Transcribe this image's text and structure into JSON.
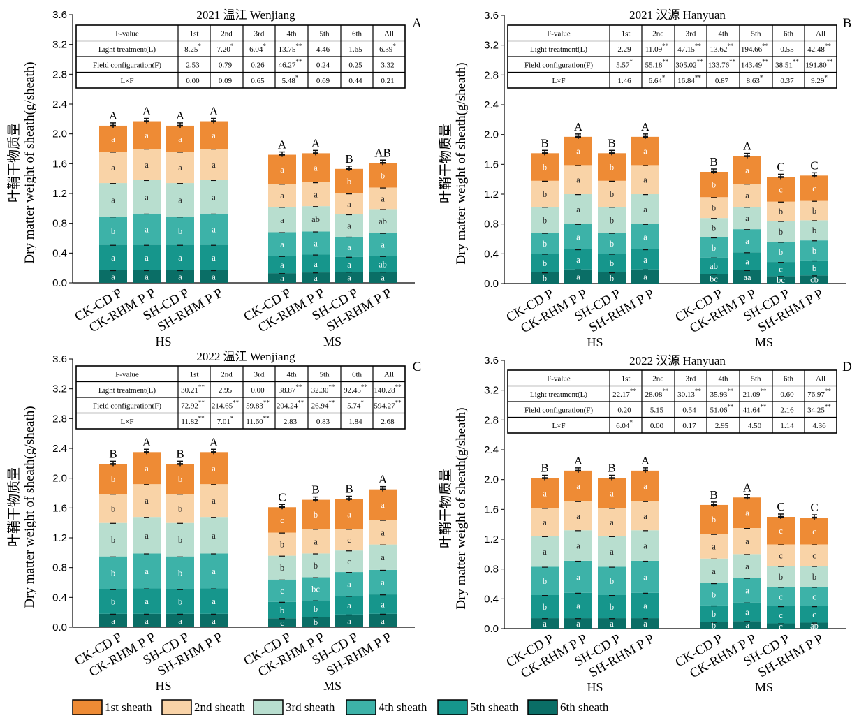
{
  "colors": {
    "s1": "#EE8B35",
    "s2": "#F9D3A7",
    "s3": "#B8DECF",
    "s4": "#3DB2A8",
    "s5": "#16968C",
    "s6": "#0A6E66"
  },
  "legend": [
    "1st sheath",
    "2nd sheath",
    "3rd sheath",
    "4th sheath",
    "5th sheath",
    "6th sheath"
  ],
  "chart_data": [
    {
      "type": "bar",
      "stacked": true,
      "title": "2021 温江 Wenjiang",
      "panel_label": "A",
      "ylabel_cn": "叶鞘干物质量",
      "ylabel": "Dry matter weight of sheath(g/sheath)",
      "ylim": [
        0,
        3.6
      ],
      "yticks": [
        "0.0",
        "0.4",
        "0.8",
        "1.2",
        "1.6",
        "2.0",
        "2.4",
        "2.8",
        "3.2",
        "3.6"
      ],
      "categories": [
        "CK-CD P",
        "CK-RHM P P",
        "SH-CD P",
        "SH-RHM P P",
        "CK-CD P",
        "CK-RHM P P",
        "SH-CD P",
        "SH-RHM P P"
      ],
      "groups": [
        "HS",
        "MS"
      ],
      "series": [
        {
          "name": "6th sheath",
          "values": [
            0.17,
            0.17,
            0.17,
            0.17,
            0.13,
            0.14,
            0.15,
            0.15
          ]
        },
        {
          "name": "5th sheath",
          "values": [
            0.34,
            0.34,
            0.34,
            0.34,
            0.23,
            0.24,
            0.2,
            0.21
          ]
        },
        {
          "name": "4th sheath",
          "values": [
            0.38,
            0.42,
            0.38,
            0.42,
            0.32,
            0.31,
            0.27,
            0.31
          ]
        },
        {
          "name": "3rd sheath",
          "values": [
            0.45,
            0.45,
            0.45,
            0.45,
            0.34,
            0.34,
            0.3,
            0.32
          ]
        },
        {
          "name": "2nd sheath",
          "values": [
            0.42,
            0.42,
            0.42,
            0.42,
            0.31,
            0.32,
            0.28,
            0.29
          ]
        },
        {
          "name": "1st sheath",
          "values": [
            0.35,
            0.37,
            0.35,
            0.37,
            0.39,
            0.39,
            0.33,
            0.33
          ]
        }
      ],
      "segment_letters": [
        [
          "a",
          "a",
          "a",
          "a",
          "a",
          "a",
          "a",
          "a"
        ],
        [
          "a",
          "a",
          "a",
          "a",
          "a",
          "a",
          "a",
          "ab"
        ],
        [
          "b",
          "a",
          "b",
          "a",
          "a",
          "a",
          "a",
          "a"
        ],
        [
          "a",
          "a",
          "a",
          "a",
          "a",
          "ab",
          "a",
          "ab"
        ],
        [
          "a",
          "a",
          "a",
          "a",
          "a",
          "a",
          "a",
          "a"
        ],
        [
          "a",
          "a",
          "a",
          "a",
          "a",
          "a",
          "b",
          "b"
        ]
      ],
      "total_letters": [
        "A",
        "A",
        "A",
        "A",
        "A",
        "A",
        "B",
        "AB"
      ],
      "ftable": {
        "header": [
          "F-value",
          "1st",
          "2nd",
          "3rd",
          "4th",
          "5th",
          "6th",
          "All"
        ],
        "rows": [
          {
            "label": "Light treatment(L)",
            "cells": [
              "8.25",
              "7.20",
              "6.04",
              "13.75",
              "4.46",
              "1.65",
              "6.39"
            ],
            "sig": [
              "*",
              "*",
              "*",
              "**",
              "",
              "",
              "*"
            ]
          },
          {
            "label": "Field configuration(F)",
            "cells": [
              "2.53",
              "0.79",
              "0.26",
              "46.27",
              "0.24",
              "0.25",
              "3.32"
            ],
            "sig": [
              "",
              "",
              "",
              "**",
              "",
              "",
              ""
            ]
          },
          {
            "label": "L×F",
            "cells": [
              "0.00",
              "0.09",
              "0.65",
              "5.48",
              "0.69",
              "0.44",
              "0.21"
            ],
            "sig": [
              "",
              "",
              "",
              "*",
              "",
              "",
              ""
            ]
          }
        ]
      }
    },
    {
      "type": "bar",
      "stacked": true,
      "title": "2021 汉源 Hanyuan",
      "panel_label": "B",
      "ylabel_cn": "叶鞘干物质量",
      "ylabel": "Dry matter weight of sheath(g/sheath)",
      "ylim": [
        0,
        3.6
      ],
      "yticks": [
        "0.0",
        "0.4",
        "0.8",
        "1.2",
        "1.6",
        "2.0",
        "2.4",
        "2.8",
        "3.2",
        "3.6"
      ],
      "categories": [
        "CK-CD P",
        "CK-RHM P P",
        "SH-CD P",
        "SH-RHM P P",
        "CK-CD P",
        "CK-RHM P P",
        "SH-CD P",
        "SH-RHM P P"
      ],
      "groups": [
        "HS",
        "MS"
      ],
      "series": [
        {
          "name": "6th sheath",
          "values": [
            0.15,
            0.19,
            0.15,
            0.19,
            0.13,
            0.18,
            0.1,
            0.11
          ]
        },
        {
          "name": "5th sheath",
          "values": [
            0.25,
            0.27,
            0.25,
            0.27,
            0.22,
            0.24,
            0.19,
            0.2
          ]
        },
        {
          "name": "4th sheath",
          "values": [
            0.28,
            0.34,
            0.28,
            0.34,
            0.27,
            0.31,
            0.27,
            0.27
          ]
        },
        {
          "name": "3rd sheath",
          "values": [
            0.35,
            0.4,
            0.35,
            0.4,
            0.26,
            0.3,
            0.28,
            0.27
          ]
        },
        {
          "name": "2nd sheath",
          "values": [
            0.35,
            0.39,
            0.35,
            0.39,
            0.28,
            0.31,
            0.26,
            0.26
          ]
        },
        {
          "name": "1st sheath",
          "values": [
            0.37,
            0.38,
            0.37,
            0.38,
            0.34,
            0.37,
            0.33,
            0.34
          ]
        }
      ],
      "segment_letters": [
        [
          "b",
          "a",
          "b",
          "a",
          "bc",
          "aa",
          "bc",
          "cb"
        ],
        [
          "b",
          "a",
          "b",
          "a",
          "ab",
          "a",
          "c",
          "b"
        ],
        [
          "b",
          "a",
          "b",
          "a",
          "b",
          "a",
          "b",
          "b"
        ],
        [
          "b",
          "a",
          "b",
          "a",
          "b",
          "a",
          "b",
          "b"
        ],
        [
          "b",
          "a",
          "b",
          "a",
          "b",
          "a",
          "b",
          "b"
        ],
        [
          "b",
          "a",
          "b",
          "a",
          "b",
          "a",
          "c",
          "c"
        ]
      ],
      "total_letters": [
        "B",
        "A",
        "B",
        "A",
        "B",
        "A",
        "C",
        "C"
      ],
      "ftable": {
        "header": [
          "F-value",
          "1st",
          "2nd",
          "3rd",
          "4th",
          "5th",
          "6th",
          "All"
        ],
        "rows": [
          {
            "label": "Light treatment(L)",
            "cells": [
              "2.29",
              "11.09",
              "47.15",
              "13.62",
              "194.66",
              "0.55",
              "42.48"
            ],
            "sig": [
              "",
              "**",
              "**",
              "**",
              "**",
              "",
              "**"
            ]
          },
          {
            "label": "Field configuration(F)",
            "cells": [
              "5.57",
              "55.18",
              "305.02",
              "133.76",
              "143.49",
              "38.51",
              "191.80"
            ],
            "sig": [
              "*",
              "**",
              "**",
              "**",
              "**",
              "**",
              "**"
            ]
          },
          {
            "label": "L×F",
            "cells": [
              "1.46",
              "6.64",
              "16.84",
              "0.87",
              "8.63",
              "0.37",
              "9.29"
            ],
            "sig": [
              "",
              "*",
              "**",
              "",
              "*",
              "",
              "*"
            ]
          }
        ]
      }
    },
    {
      "type": "bar",
      "stacked": true,
      "title": "2022 温江 Wenjiang",
      "panel_label": "C",
      "ylabel_cn": "叶鞘干物质量",
      "ylabel": "Dry matter weight of sheath(g/sheath)",
      "ylim": [
        0,
        3.6
      ],
      "yticks": [
        "0.0",
        "0.4",
        "0.8",
        "1.2",
        "1.6",
        "2.0",
        "2.4",
        "2.8",
        "3.2",
        "3.6"
      ],
      "categories": [
        "CK-CD P",
        "CK-RHM P P",
        "SH-CD P",
        "SH-RHM P P",
        "CK-CD P",
        "CK-RHM P P",
        "SH-CD P",
        "SH-RHM P P"
      ],
      "groups": [
        "HS",
        "MS"
      ],
      "series": [
        {
          "name": "6th sheath",
          "values": [
            0.18,
            0.18,
            0.18,
            0.18,
            0.12,
            0.14,
            0.17,
            0.18
          ]
        },
        {
          "name": "5th sheath",
          "values": [
            0.33,
            0.34,
            0.33,
            0.34,
            0.22,
            0.22,
            0.25,
            0.26
          ]
        },
        {
          "name": "4th sheath",
          "values": [
            0.44,
            0.47,
            0.44,
            0.47,
            0.3,
            0.31,
            0.32,
            0.33
          ]
        },
        {
          "name": "3rd sheath",
          "values": [
            0.45,
            0.49,
            0.45,
            0.49,
            0.32,
            0.32,
            0.29,
            0.34
          ]
        },
        {
          "name": "2nd sheath",
          "values": [
            0.39,
            0.44,
            0.39,
            0.44,
            0.31,
            0.33,
            0.29,
            0.33
          ]
        },
        {
          "name": "1st sheath",
          "values": [
            0.4,
            0.43,
            0.4,
            0.43,
            0.34,
            0.39,
            0.4,
            0.41
          ]
        }
      ],
      "segment_letters": [
        [
          "a",
          "a",
          "a",
          "a",
          "c",
          "b",
          "a",
          "a"
        ],
        [
          "b",
          "a",
          "b",
          "a",
          "b",
          "b",
          "a",
          "a"
        ],
        [
          "b",
          "a",
          "b",
          "a",
          "c",
          "bc",
          "a",
          "a"
        ],
        [
          "b",
          "a",
          "b",
          "a",
          "b",
          "b",
          "c",
          "a"
        ],
        [
          "b",
          "a",
          "b",
          "a",
          "b",
          "a",
          "c",
          "a"
        ],
        [
          "b",
          "a",
          "b",
          "a",
          "c",
          "b",
          "a",
          "a"
        ]
      ],
      "total_letters": [
        "B",
        "A",
        "B",
        "A",
        "C",
        "B",
        "B",
        "A"
      ],
      "ftable": {
        "header": [
          "F-value",
          "1st",
          "2nd",
          "3rd",
          "4th",
          "5th",
          "6th",
          "All"
        ],
        "rows": [
          {
            "label": "Light treatment(L)",
            "cells": [
              "30.21",
              "2.95",
              "0.00",
              "38.87",
              "32.30",
              "92.45",
              "140.28"
            ],
            "sig": [
              "**",
              "",
              "",
              "**",
              "**",
              "**",
              "**"
            ]
          },
          {
            "label": "Field configuration(F)",
            "cells": [
              "72.92",
              "214.65",
              "59.83",
              "204.24",
              "26.94",
              "5.74",
              "594.27"
            ],
            "sig": [
              "**",
              "**",
              "**",
              "**",
              "**",
              "*",
              "**"
            ]
          },
          {
            "label": "L×F",
            "cells": [
              "11.82",
              "7.01",
              "11.60",
              "2.83",
              "0.83",
              "1.84",
              "2.68"
            ],
            "sig": [
              "**",
              "*",
              "**",
              "",
              "",
              "",
              ""
            ]
          }
        ]
      }
    },
    {
      "type": "bar",
      "stacked": true,
      "title": "2022 汉源 Hanyuan",
      "panel_label": "D",
      "ylabel_cn": "叶鞘干物质量",
      "ylabel": "Dry matter weight of sheath(g/sheath)",
      "ylim": [
        0,
        3.6
      ],
      "yticks": [
        "0.0",
        "0.4",
        "0.8",
        "1.2",
        "1.6",
        "2.0",
        "2.4",
        "2.8",
        "3.2",
        "3.6"
      ],
      "categories": [
        "CK-CD P",
        "CK-RHM P P",
        "SH-CD P",
        "SH-RHM P P",
        "CK-CD P",
        "CK-RHM P P",
        "SH-CD P",
        "SH-RHM P P"
      ],
      "groups": [
        "HS",
        "MS"
      ],
      "series": [
        {
          "name": "6th sheath",
          "values": [
            0.14,
            0.14,
            0.14,
            0.14,
            0.09,
            0.1,
            0.07,
            0.08
          ]
        },
        {
          "name": "5th sheath",
          "values": [
            0.31,
            0.34,
            0.31,
            0.34,
            0.22,
            0.25,
            0.23,
            0.22
          ]
        },
        {
          "name": "4th sheath",
          "values": [
            0.38,
            0.43,
            0.38,
            0.43,
            0.3,
            0.33,
            0.26,
            0.26
          ]
        },
        {
          "name": "3rd sheath",
          "values": [
            0.41,
            0.41,
            0.41,
            0.41,
            0.33,
            0.32,
            0.28,
            0.28
          ]
        },
        {
          "name": "2nd sheath",
          "values": [
            0.38,
            0.39,
            0.38,
            0.39,
            0.33,
            0.35,
            0.29,
            0.29
          ]
        },
        {
          "name": "1st sheath",
          "values": [
            0.4,
            0.41,
            0.4,
            0.41,
            0.39,
            0.41,
            0.37,
            0.36
          ]
        }
      ],
      "segment_letters": [
        [
          "a",
          "a",
          "a",
          "a",
          "b",
          "a",
          "c",
          "ab"
        ],
        [
          "b",
          "a",
          "b",
          "a",
          "b",
          "a",
          "c",
          "c"
        ],
        [
          "b",
          "a",
          "b",
          "a",
          "b",
          "a",
          "c",
          "c"
        ],
        [
          "a",
          "a",
          "a",
          "a",
          "a",
          "a",
          "b",
          "b"
        ],
        [
          "a",
          "a",
          "a",
          "a",
          "a",
          "a",
          "c",
          "c"
        ],
        [
          "a",
          "a",
          "a",
          "a",
          "b",
          "a",
          "c",
          "c"
        ]
      ],
      "total_letters": [
        "B",
        "A",
        "B",
        "A",
        "B",
        "A",
        "C",
        "C"
      ],
      "ftable": {
        "header": [
          "F-value",
          "1st",
          "2nd",
          "3rd",
          "4th",
          "5th",
          "6th",
          "All"
        ],
        "rows": [
          {
            "label": "Light treatment(L)",
            "cells": [
              "22.17",
              "28.08",
              "30.13",
              "35.93",
              "21.09",
              "0.60",
              "76.97"
            ],
            "sig": [
              "**",
              "**",
              "**",
              "**",
              "**",
              "",
              "**"
            ]
          },
          {
            "label": "Field configuration(F)",
            "cells": [
              "0.20",
              "5.15",
              "0.54",
              "51.06",
              "41.64",
              "2.16",
              "34.25"
            ],
            "sig": [
              "",
              "",
              "",
              "**",
              "**",
              "",
              "**"
            ]
          },
          {
            "label": "L×F",
            "cells": [
              "6.04",
              "0.00",
              "0.17",
              "2.95",
              "4.50",
              "1.14",
              "4.36"
            ],
            "sig": [
              "*",
              "",
              "",
              "",
              "",
              "",
              ""
            ]
          }
        ]
      }
    }
  ]
}
